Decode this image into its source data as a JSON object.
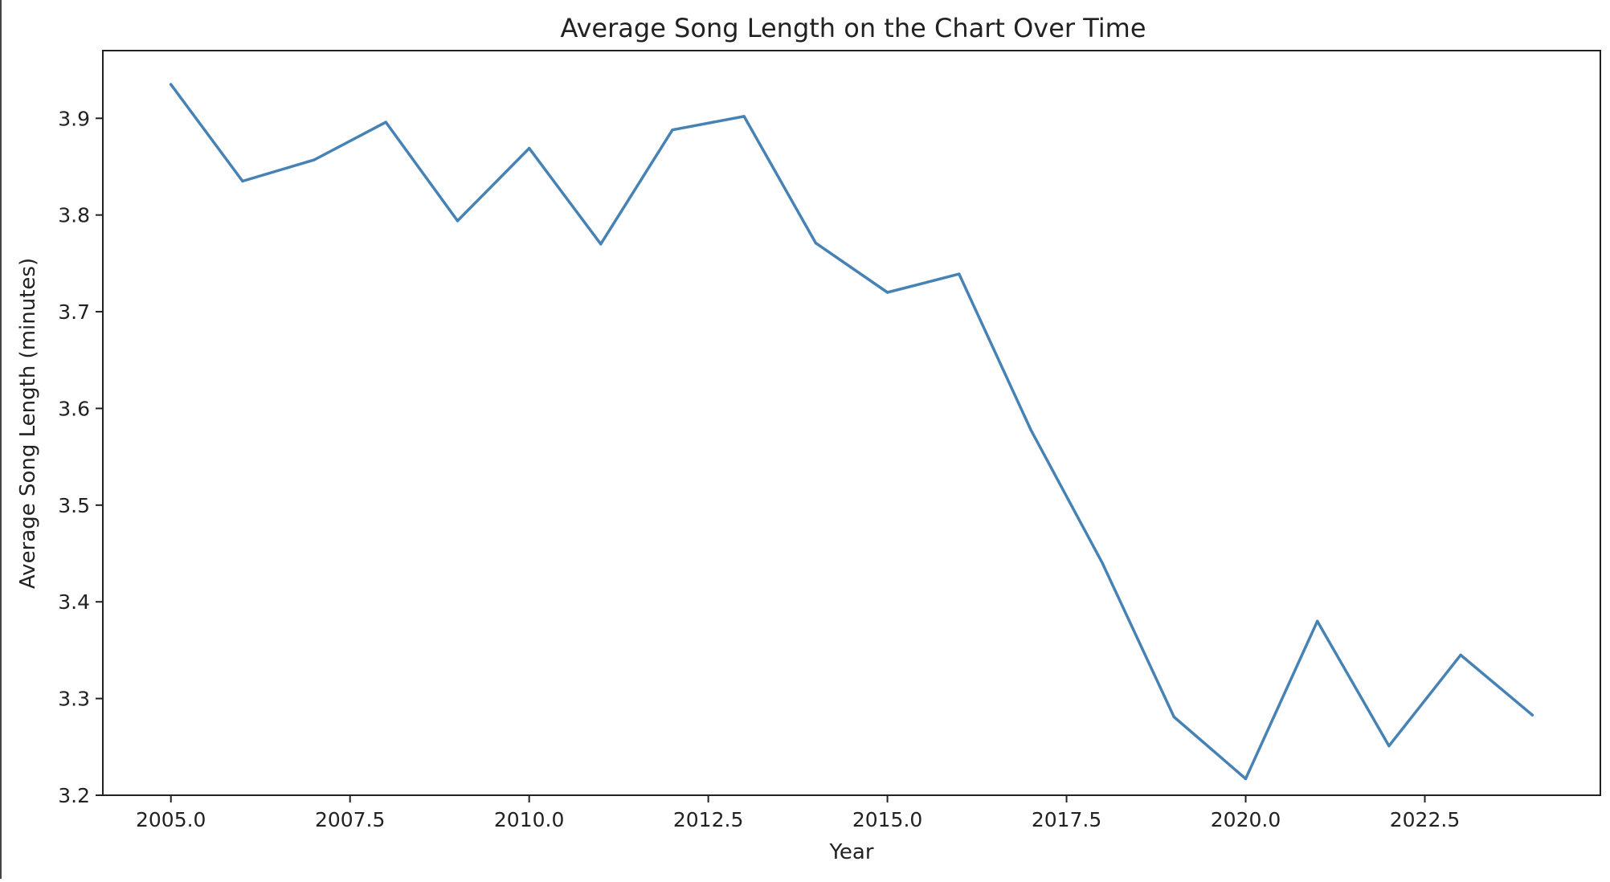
{
  "chart_data": {
    "type": "line",
    "title": "Average Song Length on the Chart Over Time",
    "xlabel": "Year",
    "ylabel": "Average Song Length (minutes)",
    "xlim": [
      2004.05,
      2024.95
    ],
    "ylim": [
      3.2,
      3.97
    ],
    "xticks": [
      "2005.0",
      "2007.5",
      "2010.0",
      "2012.5",
      "2015.0",
      "2017.5",
      "2020.0",
      "2022.5"
    ],
    "yticks": [
      "3.2",
      "3.3",
      "3.4",
      "3.5",
      "3.6",
      "3.7",
      "3.8",
      "3.9"
    ],
    "grid": false,
    "line_color": "#4682b4",
    "x": [
      2005,
      2006,
      2007,
      2008,
      2009,
      2010,
      2011,
      2012,
      2013,
      2014,
      2015,
      2016,
      2017,
      2018,
      2019,
      2020,
      2021,
      2022,
      2023,
      2024
    ],
    "y": [
      3.935,
      3.835,
      3.857,
      3.896,
      3.794,
      3.869,
      3.77,
      3.888,
      3.902,
      3.771,
      3.72,
      3.739,
      3.578,
      3.44,
      3.281,
      3.217,
      3.38,
      3.251,
      3.345,
      3.283
    ]
  }
}
